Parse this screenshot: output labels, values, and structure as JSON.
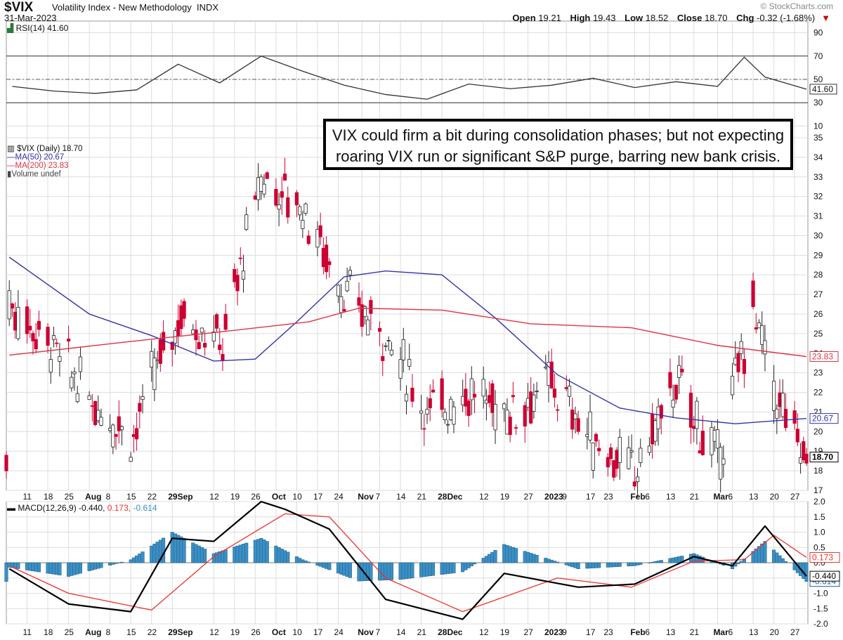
{
  "header": {
    "symbol": "$VIX",
    "description": "Volatility Index - New Methodology",
    "exchange": "INDX",
    "date": "31-Mar-2023",
    "open_label": "Open",
    "open": "19.21",
    "high_label": "High",
    "high": "19.43",
    "low_label": "Low",
    "low": "18.52",
    "close_label": "Close",
    "close": "18.70",
    "chg_label": "Chg",
    "chg": "-0.32 (-1.68%)",
    "brand": "© StockCharts.com"
  },
  "annotation": {
    "line1": "VIX could firm a bit during consolidation phases; but not expecting",
    "line2": "roaring VIX run or significant S&P purge, barring new bank crisis."
  },
  "rsi_legend": "RSI(14) 41.60",
  "price_legend": {
    "vix": "$VIX (Daily) 18.70",
    "ma50": "MA(50) 20.67",
    "ma200": "MA(200) 23.83",
    "volume": "Volume undef"
  },
  "macd_legend": {
    "main": "MACD(12,26,9) -0.440,",
    "signal": "0.173,",
    "hist": "-0.614"
  },
  "colors": {
    "up": "#ffffff",
    "down": "#cc0033",
    "ma50": "#3333aa",
    "ma200": "#dd3344",
    "hist": "#3b8fc4",
    "macd": "#000000",
    "signal": "#ee3333",
    "grid": "#dddddd"
  },
  "chart_data": [
    {
      "type": "line",
      "name": "RSI(14)",
      "ylim": [
        0,
        100
      ],
      "yticks": [
        10,
        30,
        50,
        70,
        90
      ],
      "last": 41.6,
      "x": [
        "2022-07-06",
        "2022-07-20",
        "2022-08-03",
        "2022-08-17",
        "2022-08-31",
        "2022-09-14",
        "2022-09-28",
        "2022-10-12",
        "2022-10-26",
        "2022-11-09",
        "2022-11-23",
        "2022-12-07",
        "2022-12-21",
        "2023-01-04",
        "2023-01-18",
        "2023-02-01",
        "2023-02-15",
        "2023-03-01",
        "2023-03-10",
        "2023-03-17",
        "2023-03-31"
      ],
      "values": [
        44,
        40,
        38,
        41,
        63,
        47,
        70,
        57,
        45,
        37,
        33,
        46,
        42,
        45,
        51,
        43,
        48,
        44,
        69,
        52,
        41.6
      ]
    },
    {
      "type": "candlestick",
      "name": "$VIX",
      "ylim": [
        17,
        35
      ],
      "yticks": [
        17,
        18,
        19,
        20,
        21,
        22,
        23,
        24,
        25,
        26,
        27,
        28,
        29,
        30,
        31,
        32,
        33,
        34,
        35
      ],
      "x_ticks": [
        "11",
        "18",
        "25",
        "Aug",
        "8",
        "15",
        "22",
        "29Sep",
        "12",
        "19",
        "26",
        "Oct",
        "10",
        "17",
        "24",
        "Nov",
        "7",
        "14",
        "21",
        "28Dec",
        "12",
        "19",
        "27",
        "2023",
        "9",
        "17",
        "23",
        "Feb",
        "6",
        "13",
        "21",
        "Mar",
        "6",
        "13",
        "20",
        "27"
      ],
      "last": 18.7,
      "series": [
        {
          "name": "$VIX",
          "x": [
            "2022-07-05",
            "2022-07-19",
            "2022-08-02",
            "2022-08-16",
            "2022-08-23",
            "2022-09-01",
            "2022-09-15",
            "2022-09-28",
            "2022-10-12",
            "2022-10-26",
            "2022-11-09",
            "2022-11-23",
            "2022-12-07",
            "2022-12-21",
            "2023-01-04",
            "2023-01-18",
            "2023-02-01",
            "2023-02-15",
            "2023-03-01",
            "2023-03-13",
            "2023-03-20",
            "2023-03-31"
          ],
          "values": [
            26.5,
            24.5,
            21.5,
            19.8,
            23.0,
            26.0,
            24.5,
            33.0,
            31.5,
            27.0,
            25.0,
            21.0,
            22.0,
            21.0,
            22.5,
            19.5,
            17.9,
            22.5,
            18.5,
            26.5,
            22.0,
            18.7
          ]
        },
        {
          "name": "MA(50)",
          "x": [
            "2022-07-05",
            "2022-08-01",
            "2022-08-22",
            "2022-09-12",
            "2022-09-26",
            "2022-10-10",
            "2022-10-26",
            "2022-11-09",
            "2022-11-28",
            "2022-12-16",
            "2023-01-06",
            "2023-01-27",
            "2023-02-15",
            "2023-03-07",
            "2023-03-31"
          ],
          "values": [
            28.9,
            26.0,
            24.9,
            23.6,
            23.7,
            25.6,
            27.9,
            28.2,
            28.0,
            25.8,
            22.9,
            21.2,
            20.7,
            20.4,
            20.67
          ]
        },
        {
          "name": "MA(200)",
          "x": [
            "2022-07-05",
            "2022-08-15",
            "2022-09-15",
            "2022-10-14",
            "2022-10-31",
            "2022-11-28",
            "2022-12-28",
            "2023-01-31",
            "2023-03-01",
            "2023-03-31"
          ],
          "values": [
            23.9,
            24.6,
            25.1,
            25.6,
            26.3,
            26.2,
            25.5,
            25.3,
            24.4,
            23.83
          ]
        }
      ]
    },
    {
      "type": "line",
      "name": "MACD(12,26,9)",
      "ylim": [
        -2.0,
        2.0
      ],
      "yticks": [
        -2.0,
        -1.5,
        -1.0,
        -0.5,
        0,
        0.5,
        1.0,
        1.5,
        2.0
      ],
      "series": [
        {
          "name": "MACD",
          "x": [
            "2022-07-05",
            "2022-07-25",
            "2022-08-15",
            "2022-08-29",
            "2022-09-12",
            "2022-09-28",
            "2022-10-06",
            "2022-10-21",
            "2022-11-09",
            "2022-12-05",
            "2022-12-19",
            "2023-01-13",
            "2023-02-01",
            "2023-02-21",
            "2023-03-06",
            "2023-03-17",
            "2023-03-31"
          ],
          "values": [
            -0.2,
            -1.35,
            -1.6,
            0.8,
            0.7,
            2.0,
            1.75,
            1.1,
            -1.2,
            -1.85,
            -0.35,
            -0.8,
            -0.7,
            0.2,
            -0.1,
            1.2,
            -0.44
          ]
        },
        {
          "name": "Signal",
          "x": [
            "2022-07-05",
            "2022-07-25",
            "2022-08-22",
            "2022-09-12",
            "2022-10-06",
            "2022-10-21",
            "2022-11-09",
            "2022-12-05",
            "2023-01-06",
            "2023-01-31",
            "2023-02-21",
            "2023-03-10",
            "2023-03-20",
            "2023-03-31"
          ],
          "values": [
            -0.1,
            -1.0,
            -1.55,
            0.2,
            1.6,
            1.5,
            -0.5,
            -1.6,
            -0.5,
            -0.8,
            0.05,
            0.1,
            0.9,
            0.173
          ]
        },
        {
          "name": "Histogram",
          "x": [
            "2022-07-05",
            "2022-07-25",
            "2022-08-15",
            "2022-08-29",
            "2022-09-12",
            "2022-09-28",
            "2022-10-12",
            "2022-10-31",
            "2022-11-14",
            "2022-12-05",
            "2022-12-19",
            "2023-01-13",
            "2023-02-01",
            "2023-02-21",
            "2023-03-06",
            "2023-03-17",
            "2023-03-31"
          ],
          "values": [
            -0.15,
            -0.45,
            0.1,
            1.0,
            0.3,
            0.8,
            0.1,
            -0.6,
            -0.55,
            -0.3,
            0.6,
            -0.2,
            -0.1,
            0.3,
            -0.2,
            0.7,
            -0.614
          ]
        }
      ]
    }
  ]
}
